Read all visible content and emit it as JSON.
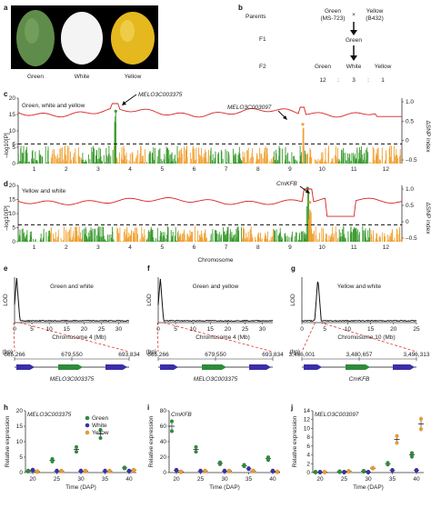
{
  "panels": {
    "a": {
      "letter": "a",
      "labels": [
        "Green",
        "White",
        "Yellow"
      ]
    },
    "b": {
      "letter": "b",
      "parents_label": "Parents",
      "parent1": "Green",
      "parent1_code": "(MS-723)",
      "cross": "×",
      "parent2": "Yellow",
      "parent2_code": "(B432)",
      "f1_label": "F1",
      "f1_value": "Green",
      "f2_label": "F2",
      "f2_classes": [
        "Green",
        "White",
        "Yellow"
      ],
      "ratio": [
        "12",
        ":",
        "3",
        ":",
        "1"
      ]
    },
    "c": {
      "letter": "c",
      "title": "Green, white and yellow",
      "gene1": "MELO3C003375",
      "gene2": "MELO3C003097",
      "ylabel_left": "–log10[P]",
      "ylabel_right": "ΔSNP index",
      "yticks_left": [
        "20",
        "15",
        "10",
        "6",
        "5",
        "0"
      ],
      "yticks_right": [
        "1.0",
        "0.5",
        "0",
        "–0.5"
      ],
      "chromosomes": [
        "1",
        "2",
        "3",
        "4",
        "5",
        "6",
        "7",
        "8",
        "9",
        "10",
        "11",
        "12"
      ]
    },
    "d": {
      "letter": "d",
      "title": "Yellow and white",
      "gene": "CmKFB",
      "ylabel_left": "–log10[P]",
      "ylabel_right": "ΔSNP index",
      "yticks_left": [
        "20",
        "15",
        "10",
        "5",
        "0"
      ],
      "yticks_right": [
        "1.0",
        "0.5",
        "0",
        "–0.5"
      ],
      "chromosomes": [
        "1",
        "2",
        "3",
        "4",
        "5",
        "6",
        "7",
        "8",
        "9",
        "10",
        "11",
        "12"
      ],
      "xlabel": "Chromosome"
    },
    "e": {
      "letter": "e",
      "title": "Green and white",
      "ylabel": "LOD",
      "xlabel": "Chromosome 4 (Mb)",
      "xticks": [
        "0",
        "5",
        "10",
        "15",
        "20",
        "25",
        "30"
      ],
      "unit": "(bp)",
      "coords": [
        "665,266",
        "679,550",
        "693,834"
      ],
      "gene": "MELO3C003375"
    },
    "f": {
      "letter": "f",
      "title": "Green and yellow",
      "ylabel": "LOD",
      "xlabel": "Chromosome 4 (Mb)",
      "xticks": [
        "0",
        "5",
        "10",
        "15",
        "20",
        "25",
        "30"
      ],
      "unit": "(bp)",
      "coords": [
        "665,266",
        "679,550",
        "693,834"
      ],
      "gene": "MELO3C003375"
    },
    "g": {
      "letter": "g",
      "title": "Yellow and white",
      "ylabel": "LOD",
      "xlabel": "Chromosome 10 (Mb)",
      "xticks": [
        "0",
        "5",
        "10",
        "15",
        "20",
        "25"
      ],
      "unit": "(bp)",
      "coords": [
        "3,466,001",
        "3,480,657",
        "3,496,313"
      ],
      "gene": "CmKFB"
    },
    "h": {
      "letter": "h",
      "gene": "MELO3C003375",
      "ylabel": "Relative expression",
      "xlabel": "Time (DAP)",
      "legend": [
        "Green",
        "White",
        "Yellow"
      ],
      "yticks": [
        "0",
        "5",
        "10",
        "15",
        "20"
      ],
      "xticks": [
        "20",
        "25",
        "30",
        "35",
        "40"
      ]
    },
    "i": {
      "letter": "i",
      "gene": "CmKFB",
      "ylabel": "Relative expression",
      "xlabel": "Time (DAP)",
      "yticks": [
        "0",
        "20",
        "40",
        "60",
        "80"
      ],
      "xticks": [
        "20",
        "25",
        "30",
        "35",
        "40"
      ]
    },
    "j": {
      "letter": "j",
      "gene": "MELO3C003097",
      "ylabel": "Relative expression",
      "xlabel": "Time (DAP)",
      "yticks": [
        "0",
        "2",
        "4",
        "6",
        "8",
        "10",
        "12",
        "14"
      ],
      "xticks": [
        "20",
        "25",
        "30",
        "35",
        "40"
      ]
    }
  },
  "colors": {
    "green": "#2e8b3a",
    "white": "#3b2fa8",
    "yellow": "#e69a2e",
    "red": "#d62222",
    "chrA": "#3a9a2e",
    "chrB": "#f0a030",
    "fruitGreen": "#5f8c4a",
    "fruitWhite": "#f2f2f2",
    "fruitYellow": "#e4b81e"
  },
  "chart_data": [
    {
      "type": "scatter",
      "panel": "h",
      "gene": "MELO3C003375",
      "x": [
        20,
        25,
        30,
        35,
        40
      ],
      "series": [
        {
          "name": "Green",
          "values": [
            0.5,
            4,
            7.5,
            12.5,
            1.5
          ]
        },
        {
          "name": "White",
          "values": [
            0.8,
            0.5,
            0.5,
            0.5,
            0.5
          ]
        },
        {
          "name": "Yellow",
          "values": [
            0.3,
            0.5,
            0.5,
            0.5,
            0.8
          ]
        }
      ],
      "ylim": [
        0,
        20
      ]
    },
    {
      "type": "scatter",
      "panel": "i",
      "gene": "CmKFB",
      "x": [
        20,
        25,
        30,
        35,
        40
      ],
      "series": [
        {
          "name": "Green",
          "values": [
            60,
            30,
            12,
            9,
            18
          ]
        },
        {
          "name": "White",
          "values": [
            3,
            2,
            2,
            5,
            2
          ]
        },
        {
          "name": "Yellow",
          "values": [
            1,
            2,
            2,
            2,
            1
          ]
        }
      ],
      "ylim": [
        0,
        80
      ]
    },
    {
      "type": "scatter",
      "panel": "j",
      "gene": "MELO3C003097",
      "x": [
        20,
        25,
        30,
        35,
        40
      ],
      "series": [
        {
          "name": "Green",
          "values": [
            0.1,
            0.2,
            0.3,
            2,
            4
          ]
        },
        {
          "name": "White",
          "values": [
            0.1,
            0.1,
            0.1,
            0.5,
            0.5
          ]
        },
        {
          "name": "Yellow",
          "values": [
            0.1,
            0.3,
            1,
            7.5,
            11
          ]
        }
      ],
      "ylim": [
        0,
        14
      ]
    }
  ]
}
